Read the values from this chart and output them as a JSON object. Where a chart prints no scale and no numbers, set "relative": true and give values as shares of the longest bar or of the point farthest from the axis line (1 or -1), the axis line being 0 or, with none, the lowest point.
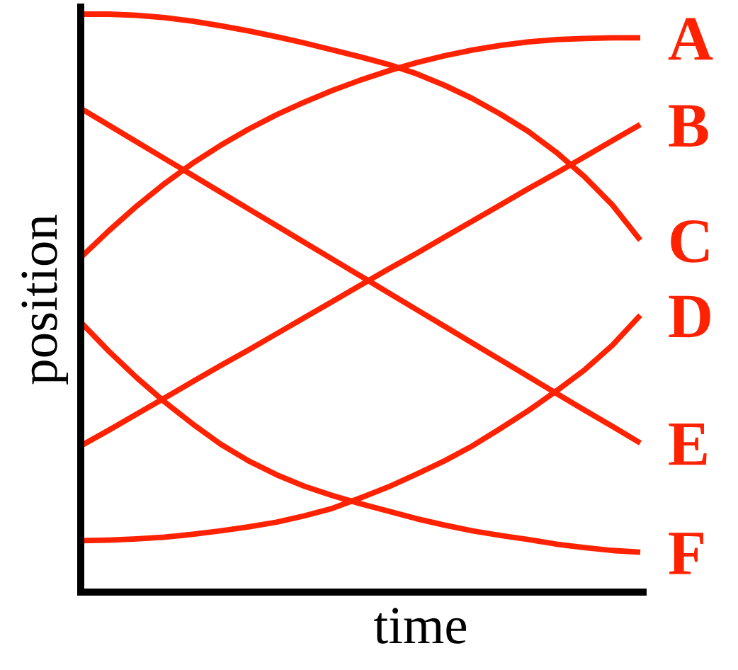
{
  "chart_data": {
    "type": "line",
    "relative": true,
    "xlabel": "time",
    "ylabel": "position",
    "marker": "none",
    "line_style": "solid",
    "categories": [
      null,
      null,
      null,
      null,
      null,
      null,
      null,
      null,
      null,
      null,
      null,
      null,
      null,
      null,
      null,
      null,
      null,
      null,
      null,
      null,
      null
    ],
    "series": [
      {
        "name": "A",
        "color": "#ff2200",
        "values": [
          0.579,
          0.625,
          0.668,
          0.707,
          0.742,
          0.773,
          0.801,
          0.826,
          0.848,
          0.868,
          0.886,
          0.902,
          0.916,
          0.928,
          0.938,
          0.946,
          0.952,
          0.956,
          0.958,
          0.959,
          0.959
        ]
      },
      {
        "name": "B",
        "color": "#ff2200",
        "values": [
          0.253,
          0.28,
          0.308,
          0.336,
          0.364,
          0.392,
          0.419,
          0.447,
          0.475,
          0.503,
          0.531,
          0.559,
          0.586,
          0.614,
          0.642,
          0.67,
          0.698,
          0.725,
          0.753,
          0.781,
          0.809
        ]
      },
      {
        "name": "C",
        "color": "#ff2200",
        "values": [
          1.0,
          1.0,
          0.998,
          0.994,
          0.988,
          0.98,
          0.971,
          0.961,
          0.95,
          0.938,
          0.926,
          0.913,
          0.897,
          0.877,
          0.854,
          0.827,
          0.797,
          0.761,
          0.719,
          0.67,
          0.609
        ]
      },
      {
        "name": "D",
        "color": "#ff2200",
        "values": [
          0.089,
          0.09,
          0.092,
          0.095,
          0.1,
          0.106,
          0.113,
          0.121,
          0.132,
          0.145,
          0.163,
          0.182,
          0.204,
          0.227,
          0.253,
          0.283,
          0.314,
          0.348,
          0.384,
          0.427,
          0.479
        ]
      },
      {
        "name": "E",
        "color": "#ff2200",
        "values": [
          0.837,
          0.808,
          0.779,
          0.75,
          0.721,
          0.692,
          0.663,
          0.634,
          0.605,
          0.576,
          0.547,
          0.518,
          0.489,
          0.46,
          0.431,
          0.402,
          0.373,
          0.344,
          0.315,
          0.287,
          0.258
        ]
      },
      {
        "name": "F",
        "color": "#ff2200",
        "values": [
          0.467,
          0.417,
          0.371,
          0.329,
          0.291,
          0.256,
          0.227,
          0.203,
          0.183,
          0.167,
          0.153,
          0.14,
          0.127,
          0.116,
          0.106,
          0.098,
          0.091,
          0.083,
          0.077,
          0.072,
          0.069
        ]
      }
    ]
  }
}
